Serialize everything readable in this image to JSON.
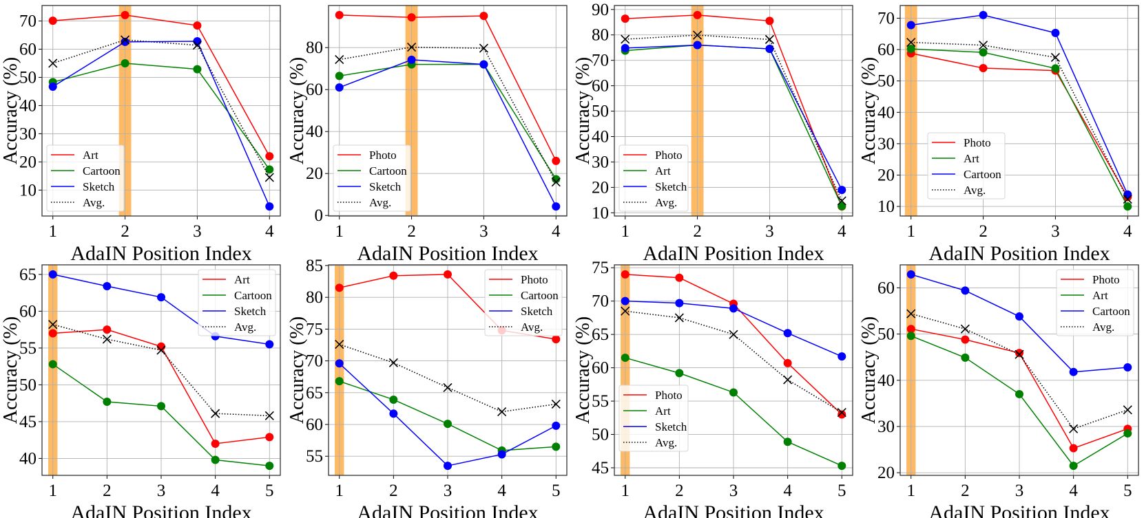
{
  "chart_data": [
    {
      "type": "line",
      "xlabel": "AdaIN Position Index",
      "ylabel": "Accuracy (%)",
      "x": [
        1,
        2,
        3,
        4
      ],
      "highlight_x": 2,
      "yticks": [
        10,
        20,
        30,
        40,
        50,
        60,
        70
      ],
      "legend": "lower left",
      "grid": true,
      "series": [
        {
          "name": "Art",
          "color": "#ff0000",
          "values": [
            70.1,
            72.1,
            68.4,
            22.0
          ]
        },
        {
          "name": "Cartoon",
          "color": "#008000",
          "values": [
            48.3,
            55.0,
            52.9,
            17.3
          ]
        },
        {
          "name": "Sketch",
          "color": "#0000ff",
          "values": [
            46.7,
            62.6,
            62.8,
            4.2
          ]
        },
        {
          "name": "Avg.",
          "color": "#000000",
          "style": "dotted",
          "values": [
            55.0,
            63.3,
            61.4,
            14.5
          ]
        }
      ]
    },
    {
      "type": "line",
      "xlabel": "AdaIN Position Index",
      "ylabel": "Accuracy (%)",
      "x": [
        1,
        2,
        3,
        4
      ],
      "highlight_x": 2,
      "yticks": [
        0,
        20,
        40,
        60,
        80
      ],
      "legend": "lower left",
      "grid": true,
      "series": [
        {
          "name": "Photo",
          "color": "#ff0000",
          "values": [
            95.5,
            94.4,
            95.1,
            26.0
          ]
        },
        {
          "name": "Cartoon",
          "color": "#008000",
          "values": [
            66.5,
            72.0,
            72.0,
            17.3
          ]
        },
        {
          "name": "Sketch",
          "color": "#0000ff",
          "values": [
            61.0,
            74.2,
            72.0,
            4.3
          ]
        },
        {
          "name": "Avg.",
          "color": "#000000",
          "style": "dotted",
          "values": [
            74.3,
            80.2,
            79.7,
            15.9
          ]
        }
      ]
    },
    {
      "type": "line",
      "xlabel": "AdaIN Position Index",
      "ylabel": "Accuracy (%)",
      "x": [
        1,
        2,
        3,
        4
      ],
      "highlight_x": 2,
      "yticks": [
        10,
        20,
        30,
        40,
        50,
        60,
        70,
        80,
        90
      ],
      "legend": "lower left",
      "grid": true,
      "series": [
        {
          "name": "Photo",
          "color": "#ff0000",
          "values": [
            86.4,
            87.8,
            85.5,
            12.5
          ]
        },
        {
          "name": "Art",
          "color": "#008000",
          "values": [
            73.8,
            76.0,
            74.5,
            12.6
          ]
        },
        {
          "name": "Sketch",
          "color": "#0000ff",
          "values": [
            74.8,
            76.0,
            74.5,
            19.0
          ]
        },
        {
          "name": "Avg.",
          "color": "#000000",
          "style": "dotted",
          "values": [
            78.3,
            79.9,
            78.2,
            14.7
          ]
        }
      ]
    },
    {
      "type": "line",
      "xlabel": "AdaIN Position Index",
      "ylabel": "Accuracy (%)",
      "x": [
        1,
        2,
        3,
        4
      ],
      "highlight_x": 1,
      "yticks": [
        10,
        20,
        30,
        40,
        50,
        60,
        70
      ],
      "legend": "lower center",
      "grid": true,
      "series": [
        {
          "name": "Photo",
          "color": "#ff0000",
          "values": [
            58.8,
            54.1,
            53.3,
            13.0
          ]
        },
        {
          "name": "Art",
          "color": "#008000",
          "values": [
            60.2,
            59.1,
            54.0,
            10.0
          ]
        },
        {
          "name": "Cartoon",
          "color": "#0000ff",
          "values": [
            67.8,
            71.0,
            65.3,
            13.8
          ]
        },
        {
          "name": "Avg.",
          "color": "#000000",
          "style": "dotted",
          "values": [
            62.3,
            61.4,
            57.5,
            12.3
          ]
        }
      ]
    },
    {
      "type": "line",
      "xlabel": "AdaIN Position Index",
      "ylabel": "Accuracy (%)",
      "x": [
        1,
        2,
        3,
        4,
        5
      ],
      "highlight_x": 1,
      "yticks": [
        40,
        45,
        50,
        55,
        60,
        65
      ],
      "legend": "upper right",
      "grid": true,
      "series": [
        {
          "name": "Art",
          "color": "#ff0000",
          "values": [
            57.0,
            57.5,
            55.2,
            42.0,
            42.9
          ]
        },
        {
          "name": "Cartoon",
          "color": "#008000",
          "values": [
            52.8,
            47.7,
            47.1,
            39.8,
            39.0
          ]
        },
        {
          "name": "Sketch",
          "color": "#0000ff",
          "values": [
            65.0,
            63.4,
            61.9,
            56.6,
            55.5
          ]
        },
        {
          "name": "Avg.",
          "color": "#000000",
          "style": "dotted",
          "values": [
            58.2,
            56.2,
            54.7,
            46.1,
            45.8
          ]
        }
      ]
    },
    {
      "type": "line",
      "xlabel": "AdaIN Position Index",
      "ylabel": "Accuracy (%)",
      "x": [
        1,
        2,
        3,
        4,
        5
      ],
      "highlight_x": 1,
      "yticks": [
        55,
        60,
        65,
        70,
        75,
        80,
        85
      ],
      "legend": "upper right",
      "grid": true,
      "series": [
        {
          "name": "Photo",
          "color": "#ff0000",
          "values": [
            81.5,
            83.4,
            83.6,
            74.8,
            73.4
          ]
        },
        {
          "name": "Cartoon",
          "color": "#008000",
          "values": [
            66.8,
            63.9,
            60.1,
            55.9,
            56.5
          ]
        },
        {
          "name": "Sketch",
          "color": "#0000ff",
          "values": [
            69.6,
            61.7,
            53.5,
            55.3,
            59.8
          ]
        },
        {
          "name": "Avg.",
          "color": "#000000",
          "style": "dotted",
          "values": [
            72.6,
            69.7,
            65.8,
            62.0,
            63.2
          ]
        }
      ]
    },
    {
      "type": "line",
      "xlabel": "AdaIN Position Index",
      "ylabel": "Accuracy (%)",
      "x": [
        1,
        2,
        3,
        4,
        5
      ],
      "highlight_x": 1,
      "yticks": [
        45,
        50,
        55,
        60,
        65,
        70,
        75
      ],
      "legend": "lower left",
      "grid": true,
      "series": [
        {
          "name": "Photo",
          "color": "#ff0000",
          "values": [
            74.0,
            73.5,
            69.6,
            60.7,
            53.0
          ]
        },
        {
          "name": "Art",
          "color": "#008000",
          "values": [
            61.5,
            59.2,
            56.3,
            48.9,
            45.3
          ]
        },
        {
          "name": "Sketch",
          "color": "#0000ff",
          "values": [
            70.0,
            69.7,
            68.9,
            65.2,
            61.7
          ]
        },
        {
          "name": "Avg.",
          "color": "#000000",
          "style": "dotted",
          "values": [
            68.5,
            67.5,
            65.0,
            58.2,
            53.3
          ]
        }
      ]
    },
    {
      "type": "line",
      "xlabel": "AdaIN Position Index",
      "ylabel": "Accuracy (%)",
      "x": [
        1,
        2,
        3,
        4,
        5
      ],
      "highlight_x": 1,
      "yticks": [
        20,
        30,
        40,
        50,
        60
      ],
      "legend": "upper right",
      "grid": true,
      "series": [
        {
          "name": "Photo",
          "color": "#ff0000",
          "values": [
            51.1,
            48.8,
            45.9,
            25.3,
            29.5
          ]
        },
        {
          "name": "Art",
          "color": "#008000",
          "values": [
            49.6,
            44.9,
            37.0,
            21.5,
            28.5
          ]
        },
        {
          "name": "Cartoon",
          "color": "#0000ff",
          "values": [
            62.9,
            59.4,
            53.8,
            41.8,
            42.8
          ]
        },
        {
          "name": "Avg.",
          "color": "#000000",
          "style": "dotted",
          "values": [
            54.4,
            51.1,
            45.6,
            29.5,
            33.6
          ]
        }
      ]
    }
  ],
  "highlight_color": "#fdb55c"
}
